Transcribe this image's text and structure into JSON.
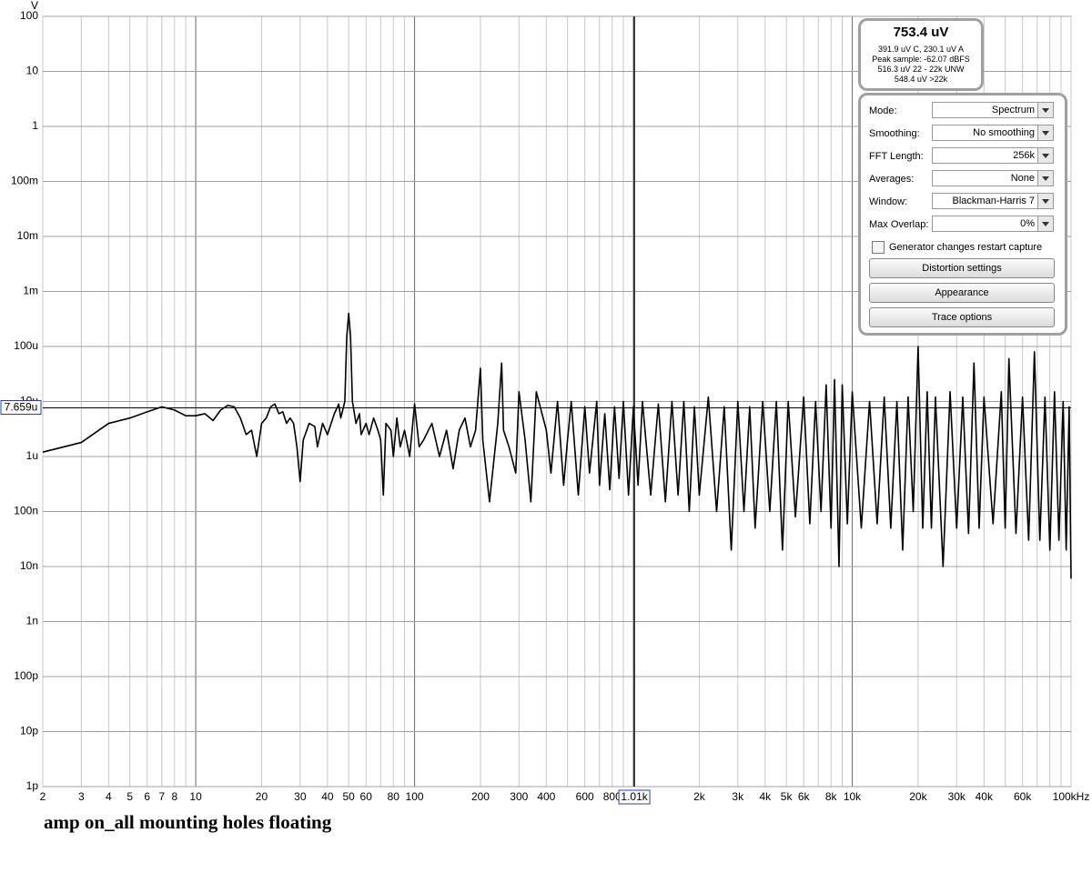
{
  "chart_data": {
    "type": "line",
    "y_unit": "V",
    "caption": "amp on_all mounting holes floating",
    "x_log": true,
    "y_log": true,
    "grid": true,
    "color": "#000000",
    "xlim": [
      2,
      100000
    ],
    "ylim": [
      1e-12,
      100
    ],
    "xticks": [
      2,
      3,
      4,
      5,
      6,
      7,
      8,
      10,
      20,
      30,
      40,
      50,
      60,
      80,
      100,
      200,
      300,
      400,
      600,
      800,
      {
        "value": 2000,
        "label": "2k"
      },
      {
        "value": 3000,
        "label": "3k"
      },
      {
        "value": 4000,
        "label": "4k"
      },
      {
        "value": 5000,
        "label": "5k"
      },
      {
        "value": 6000,
        "label": "6k"
      },
      {
        "value": 8000,
        "label": "8k"
      },
      {
        "value": 10000,
        "label": "10k"
      },
      {
        "value": 20000,
        "label": "20k"
      },
      {
        "value": 30000,
        "label": "30k"
      },
      {
        "value": 40000,
        "label": "40k"
      },
      {
        "value": 60000,
        "label": "60k"
      },
      {
        "value": 100000,
        "label": "100kHz"
      }
    ],
    "x_minor_grid": [
      9,
      70,
      90,
      500,
      700,
      900,
      1000,
      7000,
      9000,
      50000,
      70000,
      80000,
      90000
    ],
    "x_major_grid": [
      10,
      100,
      1000,
      10000
    ],
    "yticks": [
      100,
      10,
      1,
      {
        "value": 0.1,
        "label": "100m"
      },
      {
        "value": 0.01,
        "label": "10m"
      },
      {
        "value": 0.001,
        "label": "1m"
      },
      {
        "value": 0.0001,
        "label": "100u"
      },
      {
        "value": 1e-05,
        "label": "10u"
      },
      {
        "value": 1e-06,
        "label": "1u"
      },
      {
        "value": 1e-07,
        "label": "100n"
      },
      {
        "value": 1e-08,
        "label": "10n"
      },
      {
        "value": 1e-09,
        "label": "1n"
      },
      {
        "value": 1e-10,
        "label": "100p"
      },
      {
        "value": 1e-11,
        "label": "10p"
      },
      {
        "value": 1e-12,
        "label": "1p"
      }
    ],
    "cursor": {
      "x": 1010,
      "x_label": "1.01k",
      "y": 7.659e-06,
      "y_label": "7.659u"
    },
    "x": [
      2,
      3,
      4,
      5,
      6,
      7,
      8,
      9,
      10,
      11,
      12,
      13,
      14,
      15,
      16,
      17,
      18,
      19,
      20,
      21,
      22,
      23,
      24,
      25,
      26,
      27,
      28,
      29,
      30,
      31,
      33,
      35,
      36,
      38,
      40,
      43,
      45,
      46,
      48,
      49,
      50,
      51,
      52,
      54,
      56,
      57,
      60,
      62,
      65,
      68,
      70,
      72,
      74,
      78,
      80,
      83,
      86,
      90,
      95,
      100,
      105,
      110,
      120,
      130,
      140,
      150,
      160,
      170,
      180,
      190,
      200,
      205,
      220,
      240,
      250,
      255,
      270,
      290,
      300,
      320,
      340,
      360,
      400,
      420,
      450,
      480,
      500,
      520,
      560,
      600,
      630,
      680,
      700,
      740,
      780,
      820,
      860,
      900,
      950,
      1000,
      1050,
      1100,
      1200,
      1300,
      1400,
      1500,
      1600,
      1700,
      1800,
      1900,
      2000,
      2200,
      2400,
      2600,
      2800,
      3000,
      3200,
      3400,
      3600,
      3900,
      4200,
      4500,
      4800,
      5100,
      5500,
      6000,
      6400,
      6800,
      7200,
      7600,
      8000,
      8300,
      8700,
      9000,
      9500,
      10000,
      11000,
      12000,
      13000,
      14000,
      15000,
      16000,
      17000,
      18000,
      19000,
      20000,
      21000,
      22000,
      23000,
      24000,
      26000,
      28000,
      30000,
      32000,
      34000,
      36000,
      38000,
      40000,
      44000,
      48000,
      50000,
      52000,
      56000,
      60000,
      64000,
      68000,
      72000,
      76000,
      80000,
      84000,
      88000,
      92000,
      95000,
      98000,
      100000
    ],
    "values": [
      1.2e-06,
      1.8e-06,
      4e-06,
      5e-06,
      6.5e-06,
      8e-06,
      7e-06,
      5.5e-06,
      5.5e-06,
      6e-06,
      4.5e-06,
      7e-06,
      8.5e-06,
      8e-06,
      5e-06,
      2.5e-06,
      3e-06,
      1e-06,
      4e-06,
      5e-06,
      8e-06,
      9e-06,
      6e-06,
      6.5e-06,
      4e-06,
      5e-06,
      4e-06,
      1.5e-06,
      3.5e-07,
      2e-06,
      4e-06,
      3.5e-06,
      1.5e-06,
      4e-06,
      2.5e-06,
      6e-06,
      9e-06,
      5e-06,
      1e-05,
      0.00015,
      0.0004,
      0.00015,
      1e-05,
      4e-06,
      6e-06,
      2.5e-06,
      4e-06,
      2.5e-06,
      5e-06,
      3e-06,
      2e-06,
      2e-07,
      4e-06,
      3e-06,
      1e-06,
      5e-06,
      1.5e-06,
      3e-06,
      1e-06,
      9e-06,
      1.5e-06,
      2e-06,
      4e-06,
      1e-06,
      3e-06,
      6e-07,
      3e-06,
      5e-06,
      1.5e-06,
      3e-06,
      4e-05,
      2e-06,
      1.5e-07,
      4e-06,
      5e-05,
      3e-06,
      1.5e-06,
      5e-07,
      1.5e-05,
      2e-06,
      1.5e-07,
      1.5e-05,
      3e-06,
      5e-07,
      1e-05,
      3e-07,
      2e-06,
      1e-05,
      2e-07,
      8e-06,
      5e-07,
      1e-05,
      3e-07,
      6e-06,
      2.5e-07,
      8e-06,
      4e-07,
      1e-05,
      2e-07,
      8e-06,
      3e-07,
      1e-05,
      2e-07,
      9e-06,
      1.5e-07,
      1e-05,
      2e-07,
      1e-05,
      1e-07,
      8e-06,
      2e-07,
      1.2e-05,
      1e-07,
      8e-06,
      2e-08,
      1e-05,
      1e-07,
      8e-06,
      5e-08,
      1e-05,
      1e-07,
      1e-05,
      2e-08,
      1e-05,
      8e-08,
      1.2e-05,
      6e-08,
      1e-05,
      1e-07,
      2e-05,
      5e-08,
      2.5e-05,
      1e-08,
      2e-05,
      6e-08,
      1.5e-05,
      5e-08,
      1e-05,
      6e-08,
      1.2e-05,
      5e-08,
      1e-05,
      2e-08,
      1.2e-05,
      1e-07,
      0.0001,
      5e-08,
      1.5e-05,
      5e-08,
      1.2e-05,
      1e-08,
      1.5e-05,
      5e-08,
      1.2e-05,
      4e-08,
      5e-05,
      5e-08,
      1.2e-05,
      6e-08,
      1.5e-05,
      5e-08,
      6e-05,
      4e-08,
      1.2e-05,
      3e-08,
      8e-05,
      3e-08,
      1.2e-05,
      2e-08,
      1.5e-05,
      3e-08,
      1e-05,
      2e-08,
      8e-06,
      6e-09
    ]
  },
  "panel": {
    "readout": {
      "main": "753.4 uV",
      "lines": [
        "391.9 uV C, 230.1 uV A",
        "Peak sample: -62.07 dBFS",
        "516.3 uV 22 - 22k UNW",
        "548.4 uV >22k"
      ]
    },
    "controls": [
      {
        "label": "Mode:",
        "value": "Spectrum"
      },
      {
        "label": "Smoothing:",
        "value": "No  smoothing"
      },
      {
        "label": "FFT Length:",
        "value": "256k"
      },
      {
        "label": "Averages:",
        "value": "None"
      },
      {
        "label": "Window:",
        "value": "Blackman-Harris 7"
      },
      {
        "label": "Max Overlap:",
        "value": "0%"
      }
    ],
    "checkbox": "Generator changes restart capture",
    "buttons": [
      "Distortion settings",
      "Appearance",
      "Trace options"
    ]
  }
}
